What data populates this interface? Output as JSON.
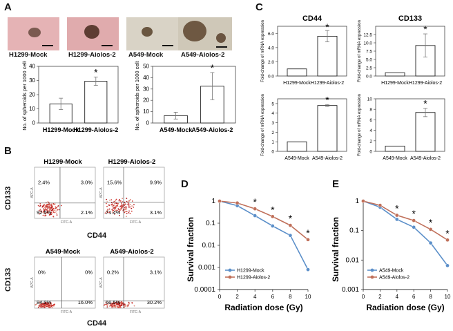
{
  "panels": {
    "a": "A",
    "b": "B",
    "c": "C",
    "d": "D",
    "e": "E"
  },
  "panel_a": {
    "photo_labels": [
      "H1299-Mock",
      "H1299-Aiolos-2",
      "A549-Mock",
      "A549-Aiolos-2"
    ],
    "colors": {
      "h1299_bg": "#e2aeb0",
      "a549_bg": "#d6d0c0"
    }
  },
  "panel_b": {
    "x_label": "CD44",
    "y_label": "CD133",
    "plots": [
      {
        "title": "H1299-Mock",
        "ul": "2.4%",
        "ur": "3.0%",
        "ll": "92.5%",
        "lr": "2.1%"
      },
      {
        "title": "H1299-Aiolos-2",
        "ul": "15.6%",
        "ur": "9.9%",
        "ll": "71.4%",
        "lr": "3.1%"
      },
      {
        "title": "A549-Mock",
        "ul": "0%",
        "ur": "0%",
        "ll": "84.0%",
        "lr": "16.0%"
      },
      {
        "title": "A549-Aiolos-2",
        "ul": "0.2%",
        "ur": "3.1%",
        "ll": "66.5%",
        "lr": "30.2%"
      }
    ],
    "small_axis": {
      "x": "FITC-A",
      "y": "APC-A"
    }
  },
  "chart_data": [
    {
      "type": "bar",
      "panel": "A",
      "categories": [
        "H1299-Mock",
        "H1299-Aiolos-2"
      ],
      "values": [
        13.5,
        29.5
      ],
      "errors": [
        4,
        3
      ],
      "ylabel": "No. of spheroids per 1000 cells",
      "ylim": [
        0,
        40
      ],
      "yticks": [
        "0",
        "10",
        "20",
        "30",
        "40"
      ],
      "significance": [
        "",
        "*"
      ]
    },
    {
      "type": "bar",
      "panel": "A",
      "categories": [
        "A549-Mock",
        "A549-Aiolos-2"
      ],
      "values": [
        6.5,
        32.5
      ],
      "errors": [
        3,
        12
      ],
      "ylabel": "No. of spheroids per 1000 cells",
      "ylim": [
        0,
        50
      ],
      "yticks": [
        "0",
        "10",
        "20",
        "30",
        "40",
        "50"
      ],
      "significance": [
        "",
        "*"
      ]
    },
    {
      "type": "bar",
      "panel": "C",
      "title": "CD44",
      "categories": [
        "H1299-Mock",
        "H1299-Aiolos-2"
      ],
      "values": [
        1.0,
        5.6
      ],
      "errors": [
        0,
        0.8
      ],
      "ylabel": "Fold-change of mRNA expression",
      "ylim": [
        0,
        7
      ],
      "yticks": [
        "0.0",
        "2.0",
        "4.0",
        "6.0"
      ],
      "significance": [
        "",
        "*"
      ]
    },
    {
      "type": "bar",
      "panel": "C",
      "title": "CD133",
      "categories": [
        "H1299-Mock",
        "H1299-Aiolos-2"
      ],
      "values": [
        1.0,
        9.2
      ],
      "errors": [
        0,
        3.5
      ],
      "ylabel": "Fold-change of mRNA expression",
      "ylim": [
        0,
        15
      ],
      "yticks": [
        "0.0",
        "2.5",
        "5.0",
        "7.5",
        "10.0",
        "12.5"
      ],
      "significance": [
        "",
        "*"
      ]
    },
    {
      "type": "bar",
      "panel": "C",
      "categories": [
        "A549-Mock",
        "A549-Aiolos-2"
      ],
      "values": [
        1.0,
        4.8
      ],
      "errors": [
        0,
        0.1
      ],
      "ylabel": "Fold-change of mRNA expression",
      "ylim": [
        0,
        5.5
      ],
      "yticks": [
        "0",
        "1",
        "2",
        "3",
        "4",
        "5"
      ],
      "significance": [
        "",
        "*"
      ]
    },
    {
      "type": "bar",
      "panel": "C",
      "categories": [
        "A549-Mock",
        "A549-Aiolos-2"
      ],
      "values": [
        1.0,
        7.4
      ],
      "errors": [
        0,
        0.8
      ],
      "ylabel": "Fold-change of mRNA expression",
      "ylim": [
        0,
        10
      ],
      "yticks": [
        "0",
        "2",
        "4",
        "6",
        "8",
        "10"
      ],
      "significance": [
        "",
        "*"
      ]
    },
    {
      "type": "line",
      "panel": "D",
      "xlabel": "Radiation dose (Gy)",
      "ylabel": "Survival fraction",
      "log_y": true,
      "ylim": [
        0.0001,
        1
      ],
      "yticks": [
        "1",
        "0.1",
        "0.01",
        "0.001",
        "0.0001"
      ],
      "x": [
        0,
        2,
        4,
        6,
        8,
        10
      ],
      "xticks": [
        "0",
        "2",
        "4",
        "6",
        "8",
        "10"
      ],
      "series": [
        {
          "name": "H1299-Mock",
          "color": "#5b8fc9",
          "values": [
            1,
            0.62,
            0.22,
            0.075,
            0.028,
            0.0008
          ]
        },
        {
          "name": "H1299-Aiolos-2",
          "color": "#c0705a",
          "values": [
            1,
            0.82,
            0.45,
            0.2,
            0.08,
            0.018
          ]
        }
      ],
      "significance_x": [
        4,
        6,
        8,
        10
      ],
      "legend": "bottom-left"
    },
    {
      "type": "line",
      "panel": "E",
      "xlabel": "Radiation dose (Gy)",
      "ylabel": "Survival fraction",
      "log_y": true,
      "ylim": [
        0.001,
        1
      ],
      "yticks": [
        "1",
        "0.1",
        "0.01",
        "0.001"
      ],
      "x": [
        0,
        2,
        4,
        6,
        8,
        10
      ],
      "xticks": [
        "0",
        "2",
        "4",
        "6",
        "8",
        "10"
      ],
      "series": [
        {
          "name": "A549-Mock",
          "color": "#5b8fc9",
          "values": [
            1,
            0.62,
            0.24,
            0.13,
            0.038,
            0.0065
          ]
        },
        {
          "name": "A549-Aiolos-2",
          "color": "#c0705a",
          "values": [
            1,
            0.72,
            0.33,
            0.22,
            0.11,
            0.048
          ]
        }
      ],
      "significance_x": [
        4,
        6,
        8,
        10
      ],
      "legend": "bottom-left"
    }
  ]
}
